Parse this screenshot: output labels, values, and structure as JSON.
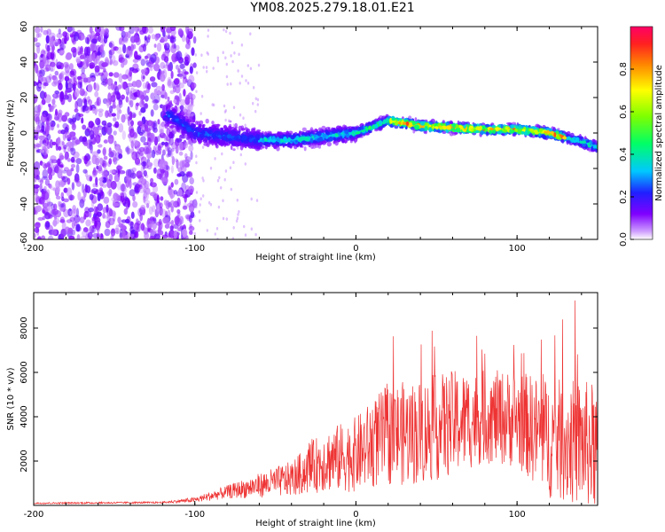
{
  "title": "YM08.2025.279.18.01.E21",
  "chart_data": [
    {
      "type": "heatmap",
      "xlabel": "Height of straight line (km)",
      "ylabel": "Frequency (Hz)",
      "xlim": [
        -200,
        150
      ],
      "ylim": [
        -60,
        60
      ],
      "xticks": [
        -200,
        -100,
        0,
        100
      ],
      "yticks": [
        -60,
        -40,
        -20,
        0,
        20,
        40,
        60
      ],
      "colorbar": {
        "label": "Normalized spectral amplitude",
        "range": [
          0,
          1
        ],
        "ticks": [
          0.0,
          0.2,
          0.4,
          0.6,
          0.8
        ]
      },
      "ridge": {
        "x": [
          -115,
          -100,
          -80,
          -60,
          -40,
          -20,
          0,
          20,
          40,
          60,
          80,
          100,
          120,
          140,
          150
        ],
        "y": [
          10,
          0,
          -2,
          -4,
          -4,
          -2,
          0,
          7,
          4,
          3,
          2,
          2,
          0,
          -5,
          -8
        ]
      }
    },
    {
      "type": "line",
      "xlabel": "Height of straight line (km)",
      "ylabel": "SNR (10 * v/v)",
      "xlim": [
        -200,
        150
      ],
      "ylim": [
        0,
        9600
      ],
      "xticks": [
        -200,
        -100,
        0,
        100
      ],
      "yticks": [
        2000,
        4000,
        6000,
        8000
      ],
      "color": "#ee3333",
      "envelope": {
        "x": [
          -200,
          -120,
          -100,
          -80,
          -60,
          -40,
          -20,
          0,
          20,
          40,
          60,
          80,
          100,
          120,
          140,
          150
        ],
        "mean": [
          100,
          130,
          250,
          600,
          900,
          1200,
          2000,
          2300,
          3200,
          3300,
          3700,
          4000,
          3900,
          3000,
          2800,
          2600
        ],
        "spread": [
          40,
          40,
          120,
          300,
          550,
          800,
          1400,
          1700,
          2300,
          2400,
          2400,
          2100,
          2200,
          2700,
          2900,
          2900
        ]
      }
    }
  ]
}
